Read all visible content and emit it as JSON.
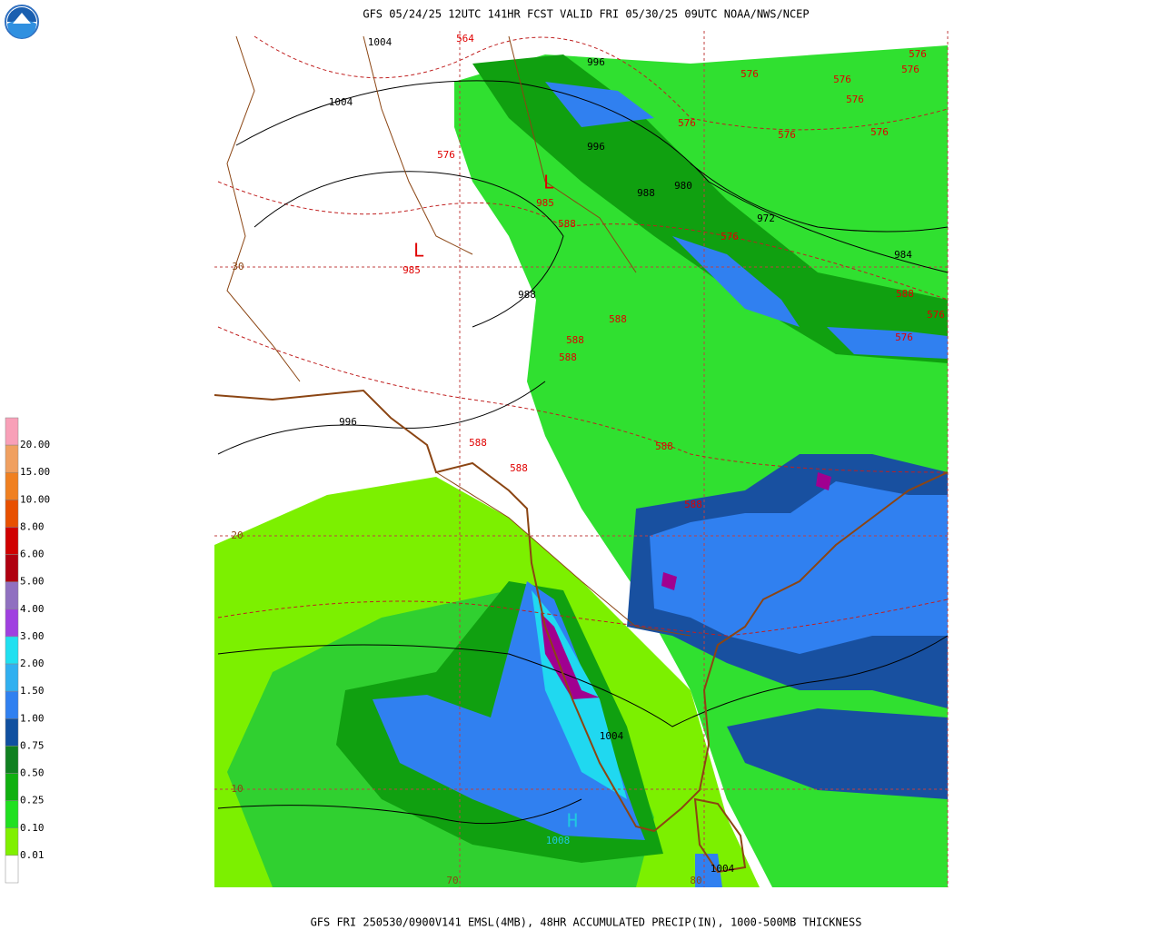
{
  "header": {
    "title": "GFS 05/24/25 12UTC 141HR FCST VALID FRI 05/30/25 09UTC NOAA/NWS/NCEP"
  },
  "footer": {
    "caption": "GFS FRI 250530/0900V141 EMSL(4MB), 48HR ACCUMULATED PRECIP(IN), 1000-500MB THICKNESS"
  },
  "legend": {
    "labels": [
      "20.00",
      "15.00",
      "10.00",
      "8.00",
      "6.00",
      "5.00",
      "4.00",
      "3.00",
      "2.00",
      "1.50",
      "1.00",
      "0.75",
      "0.50",
      "0.25",
      "0.10",
      "0.01"
    ]
  },
  "map": {
    "grid_labels": [
      "30",
      "20",
      "10",
      "70",
      "80"
    ],
    "pressure_labels": [
      "1004",
      "1004",
      "996",
      "996",
      "988",
      "980",
      "972",
      "988",
      "996",
      "1004",
      "1004",
      "984"
    ],
    "thickness_labels": [
      "564",
      "576",
      "576",
      "576",
      "576",
      "576",
      "576",
      "576",
      "576",
      "576",
      "576",
      "576",
      "576",
      "588",
      "588",
      "588",
      "588",
      "588",
      "588",
      "588",
      "588",
      "588"
    ],
    "centers": [
      {
        "symbol": "L",
        "pressure": "985"
      },
      {
        "symbol": "L",
        "pressure": "985"
      },
      {
        "symbol": "H",
        "pressure": "1008"
      }
    ]
  }
}
